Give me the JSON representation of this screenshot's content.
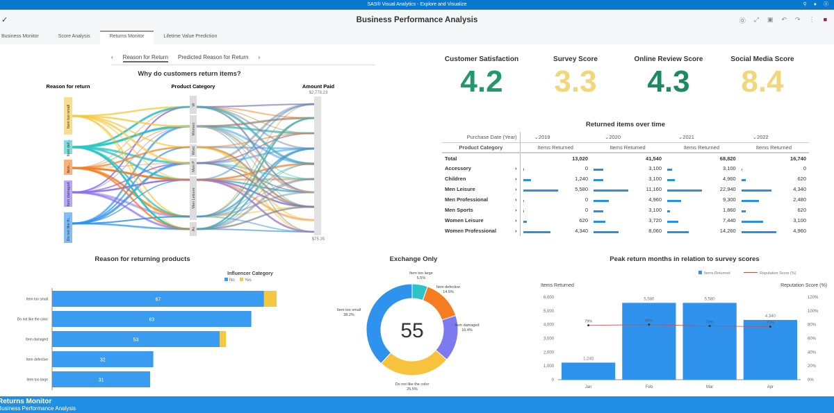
{
  "app_title": "SAS® Visual Analytics - Explore and Visualize",
  "report_title": "Business Performance Analysis",
  "tabs": [
    {
      "label": "Business Monitor"
    },
    {
      "label": "Score Analysis"
    },
    {
      "label": "Returns Monitor",
      "active": true
    },
    {
      "label": "Lifetime Value Prediction"
    }
  ],
  "subtabs": [
    {
      "label": "Reason for Return",
      "active": true
    },
    {
      "label": "Predicted Reason for Return"
    }
  ],
  "sankey": {
    "title": "Why do customers return items?",
    "col1": "Reason for return",
    "col2": "Product Category",
    "col3": "Amount Paid",
    "max_label": "$2,778.23",
    "min_label": "$75.35",
    "reasons": [
      "Item too small",
      "Item def...",
      "Item...",
      "Item damaged",
      "Do not like th..."
    ],
    "categories": [
      "W",
      "Women",
      "Wom",
      "Men P",
      "Men Leisure",
      "Ac"
    ]
  },
  "kpis": [
    {
      "label": "Customer Satisfaction",
      "value": "4.2",
      "color": "#1f9a6b"
    },
    {
      "label": "Survey Score",
      "value": "3.3",
      "color": "#f2d67a"
    },
    {
      "label": "Online Review Score",
      "value": "4.3",
      "color": "#1e8a5f"
    },
    {
      "label": "Social Media Score",
      "value": "8.4",
      "color": "#f2d67a"
    }
  ],
  "table": {
    "title": "Returned items over time",
    "col_header": "Purchase Date (Year)",
    "row_header": "Product Category",
    "measure": "Items Returned",
    "years": [
      "2019",
      "2020",
      "2021",
      "2022"
    ],
    "total": {
      "label": "Total",
      "values": [
        "13,020",
        "41,540",
        "68,820",
        "16,740"
      ]
    },
    "rows": [
      {
        "label": "Accessory",
        "values": [
          "0",
          "3,100",
          "3,100",
          "0"
        ],
        "raw": [
          0,
          3100,
          3100,
          0
        ]
      },
      {
        "label": "Children",
        "values": [
          "1,240",
          "3,100",
          "4,960",
          "620"
        ],
        "raw": [
          1240,
          3100,
          4960,
          620
        ]
      },
      {
        "label": "Men Leisure",
        "values": [
          "5,580",
          "11,160",
          "22,940",
          "4,340"
        ],
        "raw": [
          5580,
          11160,
          22940,
          4340
        ]
      },
      {
        "label": "Men Professional",
        "values": [
          "0",
          "4,960",
          "9,300",
          "2,480"
        ],
        "raw": [
          0,
          4960,
          9300,
          2480
        ]
      },
      {
        "label": "Men Sports",
        "values": [
          "0",
          "3,100",
          "1,860",
          "620"
        ],
        "raw": [
          0,
          3100,
          1860,
          620
        ]
      },
      {
        "label": "Women Leisure",
        "values": [
          "620",
          "3,720",
          "7,440",
          "3,100"
        ],
        "raw": [
          620,
          3720,
          7440,
          3100
        ]
      },
      {
        "label": "Women Professional",
        "values": [
          "4,340",
          "8,060",
          "14,260",
          "4,960"
        ],
        "raw": [
          4340,
          8060,
          14260,
          4960
        ]
      }
    ]
  },
  "chart_data": [
    {
      "type": "bar",
      "orientation": "horizontal",
      "stacked": true,
      "title": "Reason for returning products",
      "legend_title": "Influencer Category",
      "legend_position": "top-right",
      "categories": [
        "Item too small",
        "Do not like the color",
        "Item damaged",
        "Item defective",
        "Item too large"
      ],
      "series": [
        {
          "name": "No",
          "values": [
            67,
            63,
            53,
            32,
            31
          ],
          "color": "#3a9cf0"
        },
        {
          "name": "Yes",
          "values": [
            4,
            0,
            2,
            0,
            0
          ],
          "color": "#f5c842"
        }
      ]
    },
    {
      "type": "pie",
      "donut": true,
      "title": "Exchange Only",
      "center_label": "55",
      "slices": [
        {
          "label": "Item too large",
          "value": 5.5,
          "display": "5.5%",
          "color": "#2ec4c4"
        },
        {
          "label": "Item defective",
          "value": 14.5,
          "display": "14.5%",
          "color": "#f57c1f"
        },
        {
          "label": "Item damaged",
          "value": 16.4,
          "display": "16.4%",
          "color": "#7b7bef"
        },
        {
          "label": "Do not like the color",
          "value": 25.5,
          "display": "25.5%",
          "color": "#f7c23c"
        },
        {
          "label": "Item too small",
          "value": 38.2,
          "display": "38.2%",
          "color": "#2f93ee"
        }
      ]
    },
    {
      "type": "bar+line",
      "title": "Peak return months in relation to survey scores",
      "legend_position": "top-right",
      "categories": [
        "Jan",
        "Feb",
        "Mar",
        "Apr"
      ],
      "bar_series": {
        "name": "Items Returned",
        "values": [
          1240,
          5580,
          5580,
          4340
        ],
        "labels": [
          "1,240",
          "5,580",
          "5,580",
          "4,340"
        ],
        "color": "#2f93ee"
      },
      "line_series": {
        "name": "Reputation Score (%)",
        "values": [
          79,
          80,
          78,
          77
        ],
        "labels": [
          "79%",
          "80%",
          "78%",
          "77%"
        ],
        "color": "#c0504d"
      },
      "ylabel": "Items Returned",
      "y2label": "Reputation Score (%)",
      "ylim": [
        0,
        6000
      ],
      "y2lim": [
        0,
        120
      ],
      "yticks": [
        "0",
        "1,000",
        "2,000",
        "3,000",
        "4,000",
        "5,000",
        "6,000"
      ],
      "y2ticks": [
        "0%",
        "20%",
        "40%",
        "60%",
        "80%",
        "100%",
        "120%"
      ]
    }
  ],
  "footer": {
    "title": "Returns Monitor",
    "subtitle": "Business Performance Analysis"
  }
}
